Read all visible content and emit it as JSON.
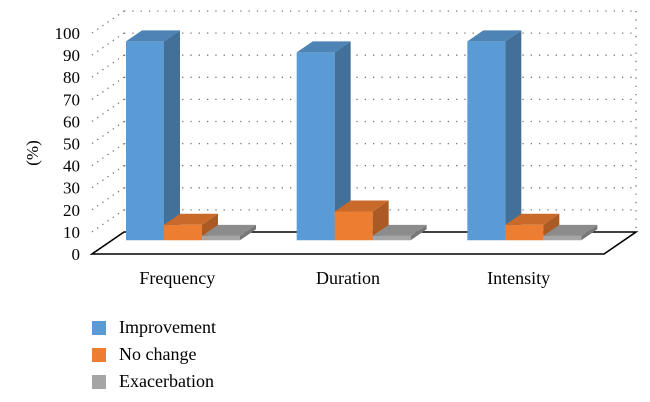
{
  "chart_data": {
    "type": "bar",
    "style": "3d-clustered",
    "categories": [
      "Frequency",
      "Duration",
      "Intensity"
    ],
    "series": [
      {
        "name": "Improvement",
        "values": [
          90,
          85,
          90
        ],
        "color": "#5b9bd5"
      },
      {
        "name": "No change",
        "values": [
          7,
          13,
          7
        ],
        "color": "#ed7d31"
      },
      {
        "name": "Exacerbation",
        "values": [
          2,
          2,
          2
        ],
        "color": "#a5a5a5"
      }
    ],
    "ylabel": "(%)",
    "ylim": [
      0,
      100
    ],
    "yticks": [
      "0",
      "10",
      "20",
      "30",
      "40",
      "50",
      "60",
      "70",
      "80",
      "90",
      "100"
    ],
    "grid": "dotted",
    "legend_position": "bottom-left"
  }
}
